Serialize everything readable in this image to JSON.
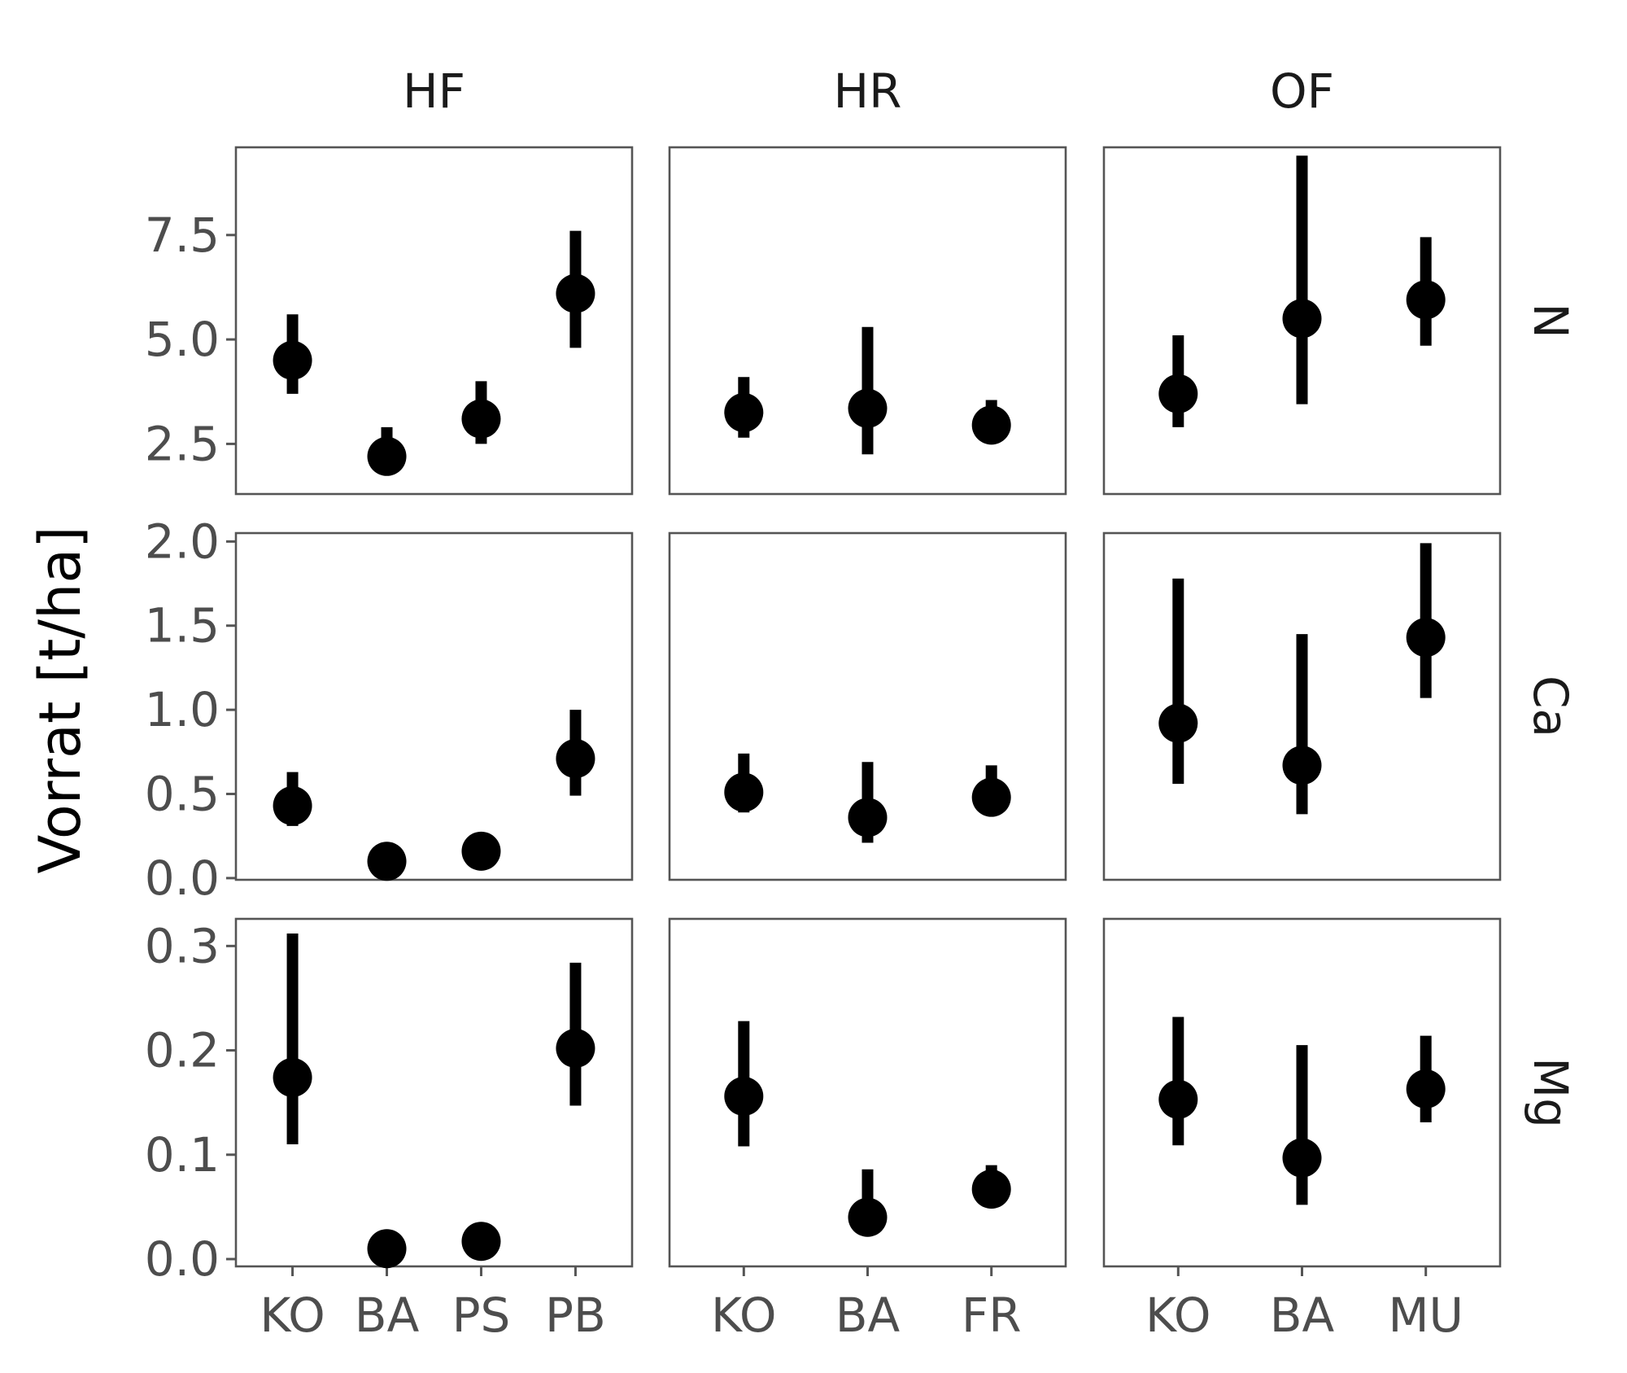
{
  "chart_data": {
    "type": "pointrange",
    "ylabel": "Vorrat [t/ha]",
    "xlabel": "",
    "facet_columns": [
      "HF",
      "HR",
      "OF"
    ],
    "facet_rows": [
      "N",
      "Ca",
      "Mg"
    ],
    "categories": {
      "HF": [
        "KO",
        "BA",
        "PS",
        "PB"
      ],
      "HR": [
        "KO",
        "BA",
        "FR"
      ],
      "OF": [
        "KO",
        "BA",
        "MU"
      ]
    },
    "y_axes": {
      "N": {
        "ylim": [
          1.3,
          9.6
        ],
        "ticks": [
          "2.5",
          "5.0",
          "7.5"
        ]
      },
      "Ca": {
        "ylim": [
          -0.01,
          2.05
        ],
        "ticks": [
          "0.0",
          "0.5",
          "1.0",
          "1.5",
          "2.0"
        ]
      },
      "Mg": {
        "ylim": [
          -0.007,
          0.326
        ],
        "ticks": [
          "0.0",
          "0.1",
          "0.2",
          "0.3"
        ]
      }
    },
    "grid": false,
    "panels": [
      {
        "row": "N",
        "col": "HF",
        "points": [
          {
            "x": "KO",
            "y": 4.5,
            "ymin": 3.7,
            "ymax": 5.6
          },
          {
            "x": "BA",
            "y": 2.2,
            "ymin": 2.2,
            "ymax": 2.9
          },
          {
            "x": "PS",
            "y": 3.1,
            "ymin": 2.5,
            "ymax": 4.0
          },
          {
            "x": "PB",
            "y": 6.1,
            "ymin": 4.8,
            "ymax": 7.6
          }
        ]
      },
      {
        "row": "N",
        "col": "HR",
        "points": [
          {
            "x": "KO",
            "y": 3.25,
            "ymin": 2.65,
            "ymax": 4.1
          },
          {
            "x": "BA",
            "y": 3.35,
            "ymin": 2.25,
            "ymax": 5.3
          },
          {
            "x": "FR",
            "y": 2.95,
            "ymin": 2.9,
            "ymax": 3.55
          }
        ]
      },
      {
        "row": "N",
        "col": "OF",
        "points": [
          {
            "x": "KO",
            "y": 3.7,
            "ymin": 2.9,
            "ymax": 5.1
          },
          {
            "x": "BA",
            "y": 5.5,
            "ymin": 3.45,
            "ymax": 9.4
          },
          {
            "x": "MU",
            "y": 5.95,
            "ymin": 4.85,
            "ymax": 7.45
          }
        ]
      },
      {
        "row": "Ca",
        "col": "HF",
        "points": [
          {
            "x": "KO",
            "y": 0.43,
            "ymin": 0.31,
            "ymax": 0.63
          },
          {
            "x": "BA",
            "y": 0.1,
            "ymin": 0.1,
            "ymax": 0.1
          },
          {
            "x": "PS",
            "y": 0.16,
            "ymin": 0.16,
            "ymax": 0.16
          },
          {
            "x": "PB",
            "y": 0.71,
            "ymin": 0.49,
            "ymax": 1.0
          }
        ]
      },
      {
        "row": "Ca",
        "col": "HR",
        "points": [
          {
            "x": "KO",
            "y": 0.51,
            "ymin": 0.39,
            "ymax": 0.74
          },
          {
            "x": "BA",
            "y": 0.36,
            "ymin": 0.21,
            "ymax": 0.69
          },
          {
            "x": "FR",
            "y": 0.48,
            "ymin": 0.42,
            "ymax": 0.67
          }
        ]
      },
      {
        "row": "Ca",
        "col": "OF",
        "points": [
          {
            "x": "KO",
            "y": 0.92,
            "ymin": 0.56,
            "ymax": 1.78
          },
          {
            "x": "BA",
            "y": 0.67,
            "ymin": 0.38,
            "ymax": 1.45
          },
          {
            "x": "MU",
            "y": 1.43,
            "ymin": 1.07,
            "ymax": 1.99
          }
        ]
      },
      {
        "row": "Mg",
        "col": "HF",
        "points": [
          {
            "x": "KO",
            "y": 0.174,
            "ymin": 0.11,
            "ymax": 0.312
          },
          {
            "x": "BA",
            "y": 0.01,
            "ymin": 0.01,
            "ymax": 0.01
          },
          {
            "x": "PS",
            "y": 0.017,
            "ymin": 0.017,
            "ymax": 0.017
          },
          {
            "x": "PB",
            "y": 0.202,
            "ymin": 0.147,
            "ymax": 0.284
          }
        ]
      },
      {
        "row": "Mg",
        "col": "HR",
        "points": [
          {
            "x": "KO",
            "y": 0.156,
            "ymin": 0.108,
            "ymax": 0.228
          },
          {
            "x": "BA",
            "y": 0.04,
            "ymin": 0.025,
            "ymax": 0.086
          },
          {
            "x": "FR",
            "y": 0.067,
            "ymin": 0.062,
            "ymax": 0.09
          }
        ]
      },
      {
        "row": "Mg",
        "col": "OF",
        "points": [
          {
            "x": "KO",
            "y": 0.153,
            "ymin": 0.109,
            "ymax": 0.232
          },
          {
            "x": "BA",
            "y": 0.097,
            "ymin": 0.052,
            "ymax": 0.205
          },
          {
            "x": "MU",
            "y": 0.163,
            "ymin": 0.131,
            "ymax": 0.214
          }
        ]
      }
    ]
  }
}
